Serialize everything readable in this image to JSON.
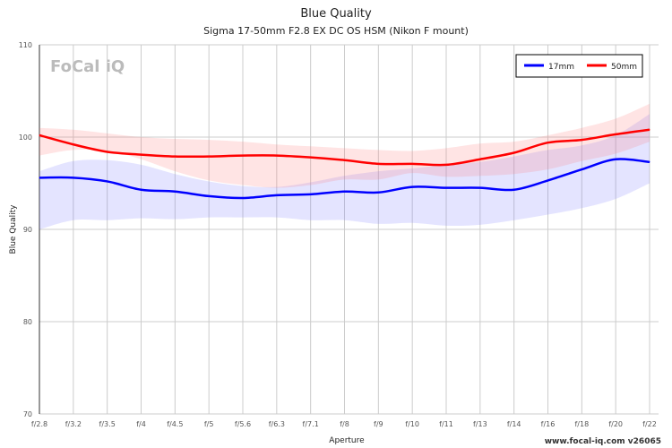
{
  "chart_data": {
    "type": "line",
    "title": "Blue Quality",
    "subtitle": "Sigma 17-50mm F2.8 EX DC OS HSM (Nikon F mount)",
    "xlabel": "Aperture",
    "ylabel": "Blue Quality",
    "ylim": [
      70,
      110
    ],
    "yticks": [
      70,
      80,
      90,
      100,
      110
    ],
    "categories": [
      "f/2.8",
      "f/3.2",
      "f/3.5",
      "f/4",
      "f/4.5",
      "f/5",
      "f/5.6",
      "f/6.3",
      "f/7.1",
      "f/8",
      "f/9",
      "f/10",
      "f/11",
      "f/13",
      "f/14",
      "f/16",
      "f/18",
      "f/20",
      "f/22"
    ],
    "grid": true,
    "legend_position": "top-right",
    "series": [
      {
        "name": "17mm",
        "color": "#0000ff",
        "band_color": "rgba(120,120,255,0.2)",
        "values": [
          95.6,
          95.6,
          95.2,
          94.3,
          94.1,
          93.6,
          93.4,
          93.7,
          93.8,
          94.1,
          94.0,
          94.6,
          94.5,
          94.5,
          94.3,
          95.3,
          96.5,
          97.6,
          97.3
        ],
        "upper": [
          96.3,
          97.4,
          97.5,
          97.0,
          96.0,
          95.2,
          94.7,
          94.6,
          95.1,
          95.8,
          96.3,
          96.6,
          97.0,
          97.3,
          97.9,
          98.6,
          99.1,
          100.2,
          102.5
        ],
        "lower": [
          90.0,
          91.0,
          91.0,
          91.2,
          91.1,
          91.3,
          91.3,
          91.3,
          91.0,
          91.0,
          90.6,
          90.7,
          90.4,
          90.5,
          91.0,
          91.6,
          92.3,
          93.3,
          95.0
        ]
      },
      {
        "name": "50mm",
        "color": "#ff0000",
        "band_color": "rgba(255,120,120,0.2)",
        "values": [
          100.2,
          99.2,
          98.4,
          98.1,
          97.9,
          97.9,
          98.0,
          98.0,
          97.8,
          97.5,
          97.1,
          97.1,
          97.0,
          97.6,
          98.3,
          99.4,
          99.7,
          100.3,
          100.8
        ],
        "upper": [
          101.0,
          100.8,
          100.4,
          100.0,
          99.8,
          99.7,
          99.5,
          99.2,
          99.0,
          98.8,
          98.6,
          98.5,
          98.8,
          99.3,
          99.5,
          100.2,
          101.0,
          102.0,
          103.6
        ],
        "lower": [
          98.0,
          98.6,
          98.5,
          97.6,
          96.3,
          95.3,
          94.8,
          94.5,
          94.8,
          95.4,
          95.4,
          96.1,
          95.7,
          95.8,
          96.0,
          96.5,
          97.4,
          98.2,
          99.5
        ]
      }
    ]
  },
  "logo": "FoCal iQ",
  "footer": "www.focal-iq.com  v26065"
}
